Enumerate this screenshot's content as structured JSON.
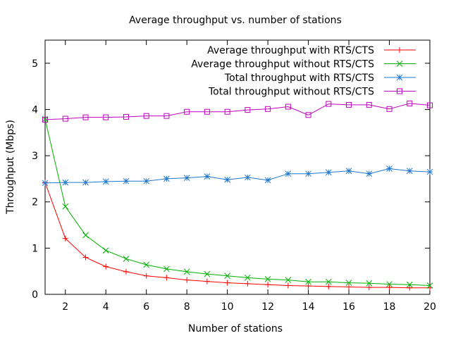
{
  "chart_data": {
    "type": "line",
    "title": "Average throughput vs. number of stations",
    "xlabel": "Number of stations",
    "ylabel": "Throughput (Mbps)",
    "xlim": [
      1,
      20
    ],
    "ylim": [
      0,
      5.5
    ],
    "x_ticks": [
      2,
      4,
      6,
      8,
      10,
      12,
      14,
      16,
      18,
      20
    ],
    "y_ticks": [
      0,
      1,
      2,
      3,
      4,
      5
    ],
    "grid": false,
    "legend_position": "top-right",
    "x": [
      1,
      2,
      3,
      4,
      5,
      6,
      7,
      8,
      9,
      10,
      11,
      12,
      13,
      14,
      15,
      16,
      17,
      18,
      19,
      20
    ],
    "series": [
      {
        "name": "Average throughput with RTS/CTS",
        "color": "#ff0000",
        "marker": "plus",
        "values": [
          2.42,
          1.21,
          0.8,
          0.6,
          0.49,
          0.4,
          0.36,
          0.31,
          0.28,
          0.25,
          0.23,
          0.21,
          0.19,
          0.18,
          0.17,
          0.16,
          0.15,
          0.15,
          0.14,
          0.14
        ]
      },
      {
        "name": "Average throughput without RTS/CTS",
        "color": "#00b000",
        "marker": "cross",
        "values": [
          3.79,
          1.9,
          1.28,
          0.95,
          0.77,
          0.64,
          0.55,
          0.49,
          0.44,
          0.4,
          0.36,
          0.33,
          0.31,
          0.27,
          0.27,
          0.25,
          0.24,
          0.22,
          0.21,
          0.19
        ]
      },
      {
        "name": "Total throughput with RTS/CTS",
        "color": "#1f77d0",
        "marker": "star",
        "values": [
          2.41,
          2.42,
          2.42,
          2.44,
          2.45,
          2.45,
          2.5,
          2.52,
          2.55,
          2.48,
          2.53,
          2.47,
          2.61,
          2.61,
          2.64,
          2.67,
          2.61,
          2.72,
          2.67,
          2.65
        ]
      },
      {
        "name": "Total throughput without RTS/CTS",
        "color": "#bf00bf",
        "marker": "square",
        "values": [
          3.78,
          3.8,
          3.83,
          3.83,
          3.84,
          3.86,
          3.86,
          3.95,
          3.95,
          3.95,
          3.99,
          4.01,
          4.06,
          3.88,
          4.12,
          4.1,
          4.1,
          4.01,
          4.13,
          4.09
        ]
      }
    ]
  }
}
